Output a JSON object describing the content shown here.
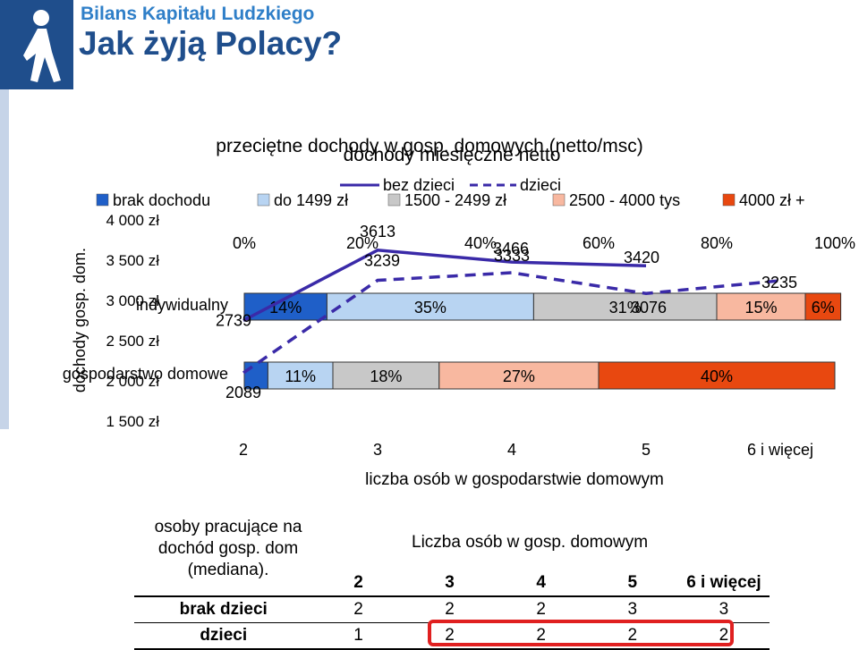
{
  "header": {
    "brand": "Bilans Kapitału Ludzkiego",
    "title": "Jak żyją Polacy?",
    "logo_icon": "walking-person-icon"
  },
  "colors": {
    "brand_blue": "#1f4e8c",
    "brand_light": "#2f7fc8"
  },
  "chart_data": [
    {
      "type": "bar",
      "orientation": "horizontal-stacked-100",
      "title": "przeciętne dochody w gosp. domowych (netto/msc)",
      "categories": [
        "indywidualny",
        "gospodarstwo domowe"
      ],
      "x_ticks": [
        "0%",
        "20%",
        "40%",
        "60%",
        "80%",
        "100%"
      ],
      "series": [
        {
          "name": "brak dochodu",
          "color": "#1f5fc8",
          "values": [
            14,
            4
          ],
          "labels": [
            "14%",
            ""
          ]
        },
        {
          "name": "do 1499 zł",
          "color": "#b8d4f2",
          "values": [
            35,
            11
          ],
          "labels": [
            "35%",
            "11%"
          ]
        },
        {
          "name": "1500 - 2499 zł",
          "color": "#c8c8c8",
          "values": [
            31,
            18
          ],
          "labels": [
            "31%",
            "18%"
          ]
        },
        {
          "name": "2500 - 4000 tys",
          "color": "#f8b8a0",
          "values": [
            15,
            27
          ],
          "labels": [
            "15%",
            "27%"
          ]
        },
        {
          "name": "4000 zł +",
          "color": "#e84810",
          "values": [
            6,
            40
          ],
          "labels": [
            "6%",
            "40%"
          ]
        }
      ],
      "legend_position": "top"
    },
    {
      "type": "line",
      "title": "dochody miesięczne netto",
      "xlabel": "liczba osób w gospodarstwie domowym",
      "ylabel": "dochody gosp. dom.",
      "categories": [
        "2",
        "3",
        "4",
        "5",
        "6 i więcej"
      ],
      "y_ticks": [
        "4 000 zł",
        "3 500 zł",
        "3 000 zł",
        "2 500 zł",
        "2 000 zł",
        "1 500 zł"
      ],
      "ylim": [
        1500,
        4000
      ],
      "series": [
        {
          "name": "bez dzieci",
          "style": "solid",
          "color": "#3a2aa8",
          "values": [
            2739,
            3613,
            3466,
            3420,
            null
          ],
          "labels": [
            "2739",
            "3613",
            "3466",
            "3420",
            ""
          ]
        },
        {
          "name": "dzieci",
          "style": "dashed",
          "color": "#3a2aa8",
          "values": [
            2089,
            3239,
            3333,
            3076,
            3235
          ],
          "labels": [
            "2089",
            "3239",
            "3333",
            "3076",
            "3235"
          ]
        }
      ],
      "legend_position": "top"
    }
  ],
  "table": {
    "label_header": "osoby pracujące na dochód gosp. dom (mediana).",
    "caption": "Liczba osób w gosp. domowym",
    "columns": [
      "2",
      "3",
      "4",
      "5",
      "6 i więcej"
    ],
    "rows": [
      {
        "label": "brak dzieci",
        "values": [
          "2",
          "2",
          "2",
          "3",
          "3"
        ]
      },
      {
        "label": "dzieci",
        "values": [
          "1",
          "2",
          "2",
          "2",
          "2"
        ]
      }
    ]
  }
}
